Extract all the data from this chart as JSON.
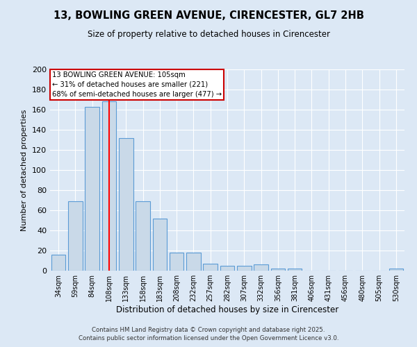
{
  "title_line1": "13, BOWLING GREEN AVENUE, CIRENCESTER, GL7 2HB",
  "title_line2": "Size of property relative to detached houses in Cirencester",
  "xlabel": "Distribution of detached houses by size in Cirencester",
  "ylabel": "Number of detached properties",
  "categories": [
    "34sqm",
    "59sqm",
    "84sqm",
    "108sqm",
    "133sqm",
    "158sqm",
    "183sqm",
    "208sqm",
    "232sqm",
    "257sqm",
    "282sqm",
    "307sqm",
    "332sqm",
    "356sqm",
    "381sqm",
    "406sqm",
    "431sqm",
    "456sqm",
    "480sqm",
    "505sqm",
    "530sqm"
  ],
  "values": [
    16,
    69,
    163,
    168,
    132,
    69,
    52,
    18,
    18,
    7,
    5,
    5,
    6,
    2,
    2,
    0,
    0,
    0,
    0,
    0,
    2
  ],
  "bar_color": "#c9d9e8",
  "bar_edge_color": "#5b9bd5",
  "redline_index": 3,
  "redline_label": "13 BOWLING GREEN AVENUE: 105sqm",
  "annotation_line2": "← 31% of detached houses are smaller (221)",
  "annotation_line3": "68% of semi-detached houses are larger (477) →",
  "annotation_box_color": "#ffffff",
  "annotation_box_edge": "#cc0000",
  "background_color": "#dce8f5",
  "fig_background_color": "#dce8f5",
  "grid_color": "#ffffff",
  "ylim": [
    0,
    200
  ],
  "yticks": [
    0,
    20,
    40,
    60,
    80,
    100,
    120,
    140,
    160,
    180,
    200
  ],
  "footer_line1": "Contains HM Land Registry data © Crown copyright and database right 2025.",
  "footer_line2": "Contains public sector information licensed under the Open Government Licence v3.0."
}
